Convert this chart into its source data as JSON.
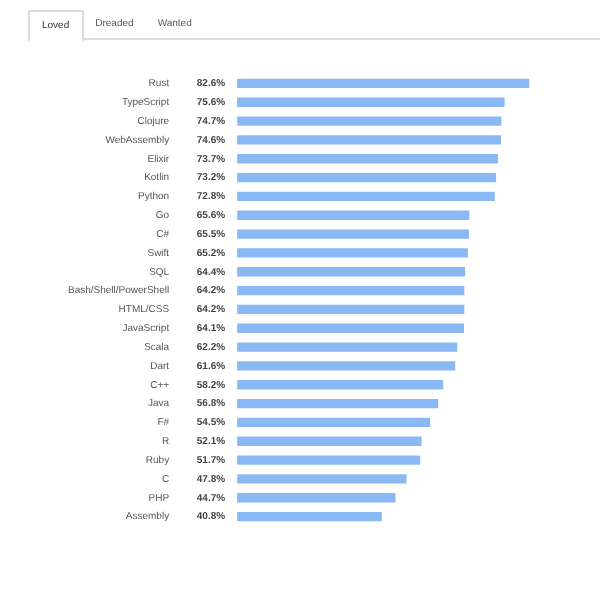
{
  "chart_data": {
    "type": "bar",
    "orientation": "horizontal",
    "categories": [
      "Rust",
      "TypeScript",
      "Clojure",
      "WebAssembly",
      "Elixir",
      "Kotlin",
      "Python",
      "Go",
      "C#",
      "Swift",
      "SQL",
      "Bash/Shell/PowerShell",
      "HTML/CSS",
      "JavaScript",
      "Scala",
      "Dart",
      "C++",
      "Java",
      "F#",
      "R",
      "Ruby",
      "C",
      "PHP",
      "Assembly"
    ],
    "values": [
      82.6,
      75.6,
      74.7,
      74.6,
      73.7,
      73.2,
      72.8,
      65.6,
      65.5,
      65.2,
      64.4,
      64.2,
      64.2,
      64.1,
      62.2,
      61.6,
      58.2,
      56.8,
      54.5,
      52.1,
      51.7,
      47.8,
      44.7,
      40.8
    ],
    "value_labels": [
      "82.6%",
      "75.6%",
      "74.7%",
      "74.6%",
      "73.7%",
      "73.2%",
      "72.8%",
      "65.6%",
      "65.5%",
      "65.2%",
      "64.4%",
      "64.2%",
      "64.2%",
      "64.1%",
      "62.2%",
      "61.6%",
      "58.2%",
      "56.8%",
      "54.5%",
      "52.1%",
      "51.7%",
      "47.8%",
      "44.7%",
      "40.8%"
    ],
    "color": "#8ab8f5",
    "tick_labels": "y",
    "grid": false,
    "legend": false,
    "annotations": [
      "Loved",
      "Dreaded",
      "Wanted"
    ]
  }
}
